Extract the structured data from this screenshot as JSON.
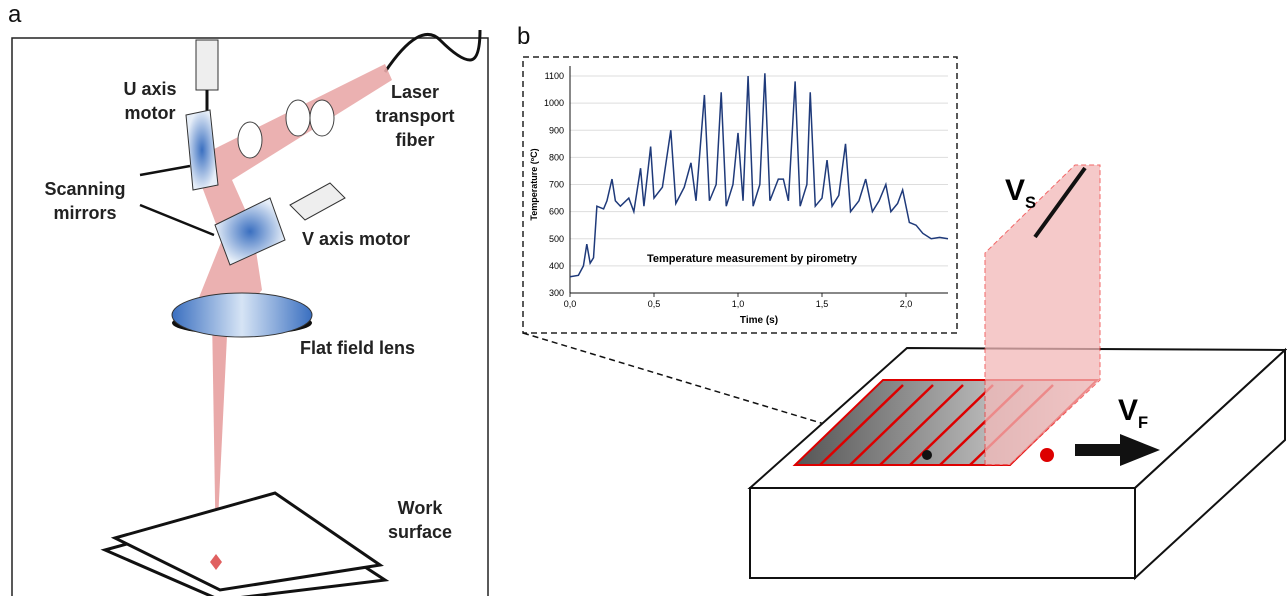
{
  "panels": {
    "a": "a",
    "b": "b"
  },
  "labels": {
    "u_axis_motor": [
      "U axis",
      "motor"
    ],
    "laser_fiber": [
      "Laser",
      "transport",
      "fiber"
    ],
    "scanning_mirrors": [
      "Scanning",
      "mirrors"
    ],
    "v_axis_motor": "V axis motor",
    "flat_field_lens": "Flat field lens",
    "work_surface": [
      "Work",
      "surface"
    ],
    "vs": {
      "main": "V",
      "sub": "S"
    },
    "vf": {
      "main": "V",
      "sub": "F"
    }
  },
  "chart_data": {
    "type": "line",
    "title": "Temperature measurement by pirometry",
    "x_label": "Time (s)",
    "y_label": "Temperature (ºC)",
    "color": "#1f3a7a",
    "x": [
      0.0,
      0.05,
      0.08,
      0.1,
      0.12,
      0.14,
      0.16,
      0.2,
      0.22,
      0.25,
      0.27,
      0.3,
      0.35,
      0.38,
      0.42,
      0.44,
      0.48,
      0.5,
      0.55,
      0.6,
      0.63,
      0.68,
      0.72,
      0.75,
      0.8,
      0.83,
      0.87,
      0.9,
      0.93,
      0.97,
      1.0,
      1.03,
      1.06,
      1.09,
      1.13,
      1.16,
      1.19,
      1.24,
      1.27,
      1.3,
      1.34,
      1.37,
      1.41,
      1.43,
      1.46,
      1.5,
      1.53,
      1.56,
      1.6,
      1.64,
      1.67,
      1.72,
      1.76,
      1.8,
      1.84,
      1.88,
      1.91,
      1.95,
      1.98,
      2.02,
      2.06,
      2.1,
      2.15,
      2.2,
      2.25
    ],
    "values": [
      360,
      365,
      400,
      480,
      410,
      430,
      620,
      610,
      640,
      720,
      640,
      620,
      650,
      600,
      760,
      620,
      840,
      650,
      690,
      900,
      630,
      690,
      780,
      640,
      1030,
      640,
      700,
      1040,
      620,
      700,
      890,
      640,
      1100,
      620,
      700,
      1110,
      640,
      720,
      720,
      640,
      1080,
      620,
      700,
      1040,
      620,
      650,
      790,
      620,
      660,
      850,
      600,
      640,
      720,
      600,
      640,
      700,
      600,
      630,
      680,
      560,
      550,
      520,
      500,
      505,
      500
    ],
    "xlim": [
      0,
      2.25
    ],
    "ylim": [
      300,
      1100
    ],
    "xticks": [
      {
        "value": 0,
        "label": "0,0"
      },
      {
        "value": 0.5,
        "label": "0,5"
      },
      {
        "value": 1,
        "label": "1,0"
      },
      {
        "value": 1.5,
        "label": "1,5"
      },
      {
        "value": 2,
        "label": "2,0"
      }
    ],
    "yticks": [
      300,
      400,
      500,
      600,
      700,
      800,
      900,
      1000,
      1100
    ],
    "grid": true
  }
}
